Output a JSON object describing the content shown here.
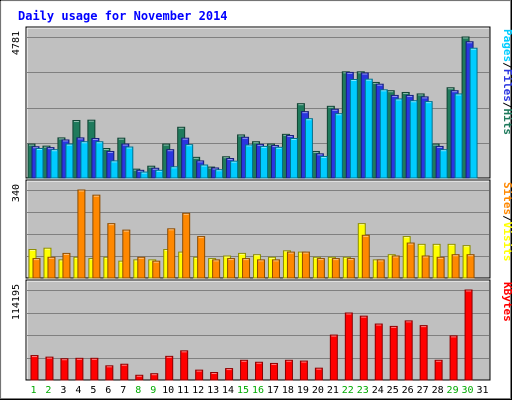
{
  "chart_data": {
    "type": "bar",
    "title": "Daily usage for November 2014",
    "categories": [
      "1",
      "2",
      "3",
      "4",
      "5",
      "6",
      "7",
      "8",
      "9",
      "10",
      "11",
      "12",
      "13",
      "14",
      "15",
      "16",
      "17",
      "18",
      "19",
      "20",
      "21",
      "22",
      "23",
      "24",
      "25",
      "26",
      "27",
      "28",
      "29",
      "30",
      "31"
    ],
    "weekend_days": [
      "1",
      "2",
      "8",
      "9",
      "15",
      "16",
      "22",
      "23",
      "29",
      "30"
    ],
    "panels": [
      {
        "name": "pages-files-hits",
        "max_label": "4781",
        "ymax": 4781,
        "series": [
          {
            "name": "Hits",
            "color": "#1f7a5c",
            "values": [
              1150,
              1080,
              1360,
              1950,
              1960,
              1000,
              1350,
              300,
              400,
              1150,
              1720,
              700,
              370,
              720,
              1460,
              1230,
              1150,
              1480,
              2520,
              900,
              2430,
              3600,
              3600,
              3240,
              2960,
              2900,
              2850,
              1150,
              3060,
              4781,
              0
            ]
          },
          {
            "name": "Files",
            "color": "#2a36e0",
            "values": [
              1060,
              1030,
              1290,
              1360,
              1340,
              900,
              1150,
              260,
              330,
              960,
              1350,
              580,
              340,
              660,
              1380,
              1140,
              1100,
              1440,
              2250,
              820,
              2330,
              3580,
              3560,
              3180,
              2800,
              2800,
              2750,
              1070,
              2960,
              4620,
              0
            ]
          },
          {
            "name": "Pages",
            "color": "#00ccff",
            "values": [
              1000,
              960,
              1150,
              1230,
              1230,
              580,
              1050,
              200,
              260,
              380,
              1130,
              440,
              280,
              570,
              1120,
              1070,
              1040,
              1340,
              2010,
              730,
              2180,
              3340,
              3350,
              2990,
              2680,
              2620,
              2590,
              960,
              2850,
              4400,
              0
            ]
          }
        ]
      },
      {
        "name": "visits-sites",
        "max_label": "340",
        "ymax": 340,
        "series": [
          {
            "name": "Visits",
            "color": "#ffff00",
            "values": [
              110,
              115,
              70,
              80,
              75,
              80,
              65,
              70,
              70,
              110,
              100,
              80,
              75,
              85,
              95,
              90,
              80,
              105,
              100,
              80,
              80,
              80,
              210,
              70,
              90,
              160,
              130,
              130,
              130,
              125,
              0
            ]
          },
          {
            "name": "Sites",
            "color": "#ff8800",
            "values": [
              75,
              80,
              95,
              340,
              320,
              210,
              185,
              80,
              65,
              190,
              250,
              160,
              70,
              75,
              75,
              70,
              70,
              100,
              100,
              75,
              75,
              75,
              165,
              70,
              85,
              135,
              85,
              80,
              90,
              90,
              0
            ]
          }
        ]
      },
      {
        "name": "kbytes",
        "max_label": "114195",
        "ymax": 114195,
        "series": [
          {
            "name": "KBytes",
            "color": "#ff0000",
            "values": [
              31000,
              29000,
              27000,
              27500,
              27500,
              18000,
              20000,
              6000,
              8000,
              30000,
              37000,
              12500,
              9500,
              14500,
              25000,
              22500,
              21000,
              25000,
              24000,
              15000,
              57000,
              85000,
              81000,
              71000,
              68000,
              75000,
              69000,
              25000,
              56000,
              114195,
              0
            ]
          }
        ]
      }
    ],
    "right_labels": {
      "top": [
        {
          "text": "Pages",
          "color": "#00ccff"
        },
        {
          "text": "/",
          "color": "#000000"
        },
        {
          "text": "Files",
          "color": "#2a36e0"
        },
        {
          "text": "/",
          "color": "#000000"
        },
        {
          "text": "Hits",
          "color": "#1f7a5c"
        }
      ],
      "middle": [
        {
          "text": "Sites",
          "color": "#ff8800"
        },
        {
          "text": "/",
          "color": "#000000"
        },
        {
          "text": "Visits",
          "color": "#ffff00"
        }
      ],
      "bottom": [
        {
          "text": "KBytes",
          "color": "#ff0000"
        }
      ]
    },
    "colors": {
      "title": "#0000ff",
      "plot_bg": "#c0c0c0",
      "outer_bg": "#ffffff",
      "grid": "#808080",
      "weekday_label": "#000000",
      "weekend_label": "#00aa00"
    },
    "grid": true,
    "legend": "right"
  }
}
